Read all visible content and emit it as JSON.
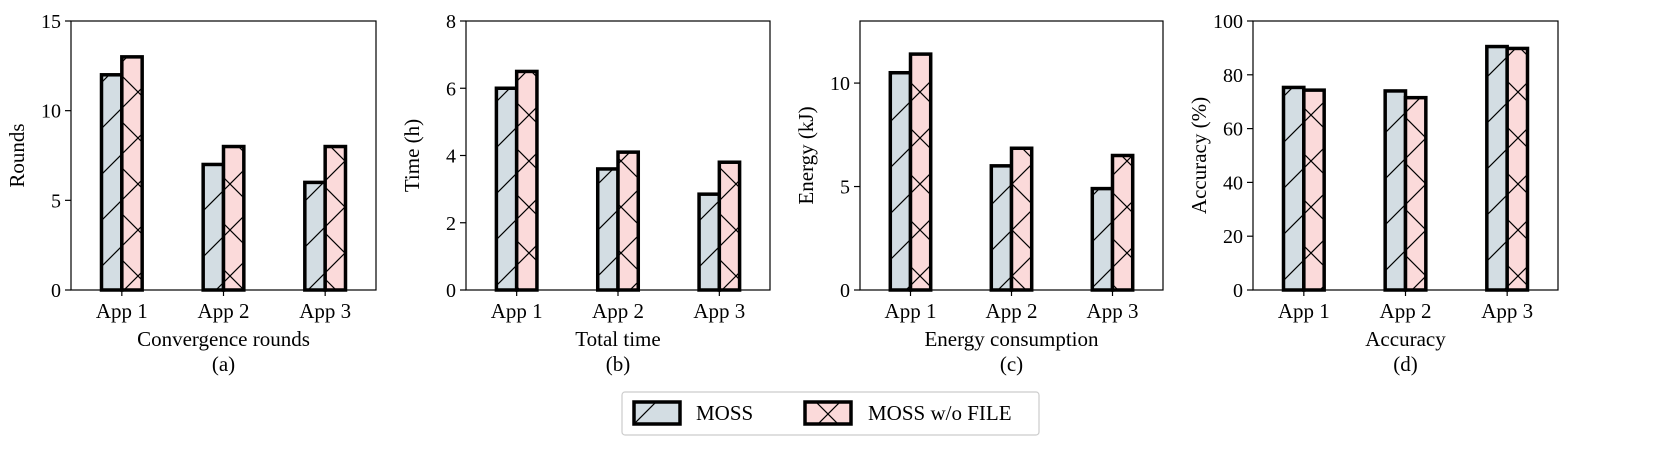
{
  "legend": {
    "placement": "bottom-center",
    "items": [
      "MOSS",
      "MOSS w/o FILE"
    ]
  },
  "colors": {
    "moss_fill": "#d3dde3",
    "file_fill": "#fbdada",
    "stroke": "#000000"
  },
  "chart_data": [
    {
      "type": "bar",
      "title": "Convergence rounds",
      "caption": "(a)",
      "ylabel": "Rounds",
      "ylim": [
        0,
        15
      ],
      "yticks": [
        0,
        5,
        10,
        15
      ],
      "categories": [
        "App 1",
        "App 2",
        "App 3"
      ],
      "series": [
        {
          "name": "MOSS",
          "values": [
            12,
            7,
            6
          ]
        },
        {
          "name": "MOSS w/o FILE",
          "values": [
            13,
            8,
            8
          ]
        }
      ]
    },
    {
      "type": "bar",
      "title": "Total time",
      "caption": "(b)",
      "ylabel": "Time (h)",
      "ylim": [
        0,
        8
      ],
      "yticks": [
        0,
        2,
        4,
        6,
        8
      ],
      "categories": [
        "App 1",
        "App 2",
        "App 3"
      ],
      "series": [
        {
          "name": "MOSS",
          "values": [
            6.0,
            3.6,
            2.85
          ]
        },
        {
          "name": "MOSS w/o FILE",
          "values": [
            6.5,
            4.1,
            3.8
          ]
        }
      ]
    },
    {
      "type": "bar",
      "title": "Energy consumption",
      "caption": "(c)",
      "ylabel": "Energy (kJ)",
      "ylim": [
        0,
        13
      ],
      "yticks": [
        0,
        5,
        10
      ],
      "categories": [
        "App 1",
        "App 2",
        "App 3"
      ],
      "series": [
        {
          "name": "MOSS",
          "values": [
            10.5,
            6.0,
            4.9
          ]
        },
        {
          "name": "MOSS w/o FILE",
          "values": [
            11.4,
            6.85,
            6.5
          ]
        }
      ]
    },
    {
      "type": "bar",
      "title": "Accuracy",
      "caption": "(d)",
      "ylabel": "Accuracy (%)",
      "ylim": [
        0,
        100
      ],
      "yticks": [
        0,
        20,
        40,
        60,
        80,
        100
      ],
      "categories": [
        "App 1",
        "App 2",
        "App 3"
      ],
      "series": [
        {
          "name": "MOSS",
          "values": [
            75.3,
            74.0,
            90.5
          ]
        },
        {
          "name": "MOSS w/o FILE",
          "values": [
            74.3,
            71.5,
            89.8
          ]
        }
      ]
    }
  ]
}
